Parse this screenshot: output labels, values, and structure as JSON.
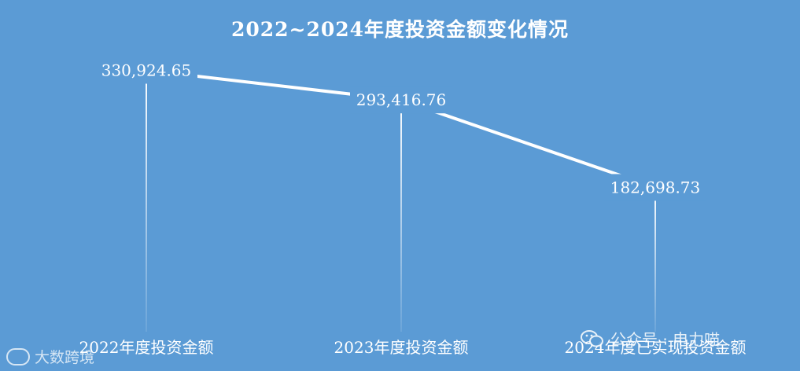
{
  "chart_data": {
    "type": "line",
    "title": "2022~2024年度投资金额变化情况",
    "categories": [
      "2022年度投资金额",
      "2023年度投资金额",
      "2024年度已实现投资金额"
    ],
    "series": [
      {
        "values": [
          330924.65,
          293416.76,
          182698.73
        ],
        "labels": [
          "330,924.65",
          "293,416.76",
          "182,698.73"
        ]
      }
    ],
    "ylim": [
      0,
      420000
    ],
    "grid": false,
    "legend": "none",
    "drop_lines": true
  },
  "colors": {
    "background": "#5b9bd5",
    "line": "#ffffff",
    "text": "#ffffff"
  },
  "watermarks": {
    "left_text": "大数跨境",
    "right_text": "公众号 · 电力喵",
    "left_icon": "brand-logo-icon",
    "right_icon": "wechat-icon"
  }
}
